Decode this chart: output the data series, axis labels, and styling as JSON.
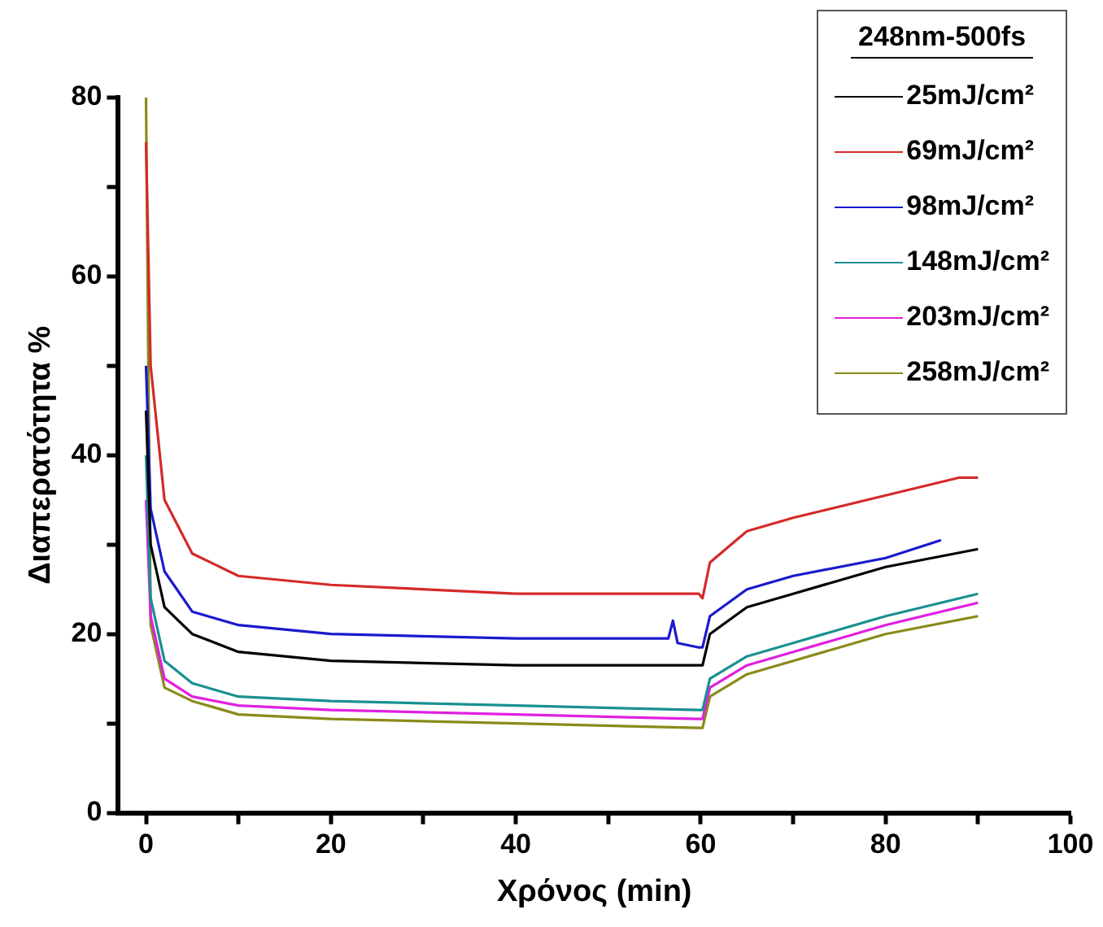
{
  "chart_data": {
    "type": "line",
    "xlabel": "Χρόνος (min)",
    "ylabel": "Διαπερατότητα %",
    "legend_title": "248nm-500fs",
    "legend": "top right",
    "grid": false,
    "marker": "none",
    "line_style": "solid",
    "xlim": [
      -3,
      100
    ],
    "xticks": [
      0,
      {
        "value": 10,
        "label": null
      },
      20,
      {
        "value": 30,
        "label": null
      },
      40,
      {
        "value": 50,
        "label": null
      },
      60,
      {
        "value": 70,
        "label": null
      },
      80,
      {
        "value": 90,
        "label": null
      },
      100
    ],
    "ylim": [
      0,
      80
    ],
    "yticks": [
      0,
      {
        "value": 10,
        "label": null
      },
      20,
      {
        "value": 30,
        "label": null
      },
      40,
      {
        "value": 50,
        "label": null
      },
      60,
      {
        "value": 70,
        "label": null
      },
      80
    ],
    "series": [
      {
        "name": "25mJ/cm²",
        "color": "#000000",
        "x": [
          0,
          0.5,
          2,
          5,
          10,
          20,
          40,
          59.8,
          60.2,
          61,
          65,
          70,
          80,
          90
        ],
        "values": [
          45,
          30,
          23,
          20,
          18,
          17,
          16.5,
          16.5,
          16.5,
          20,
          23,
          24.5,
          27.5,
          29.5
        ]
      },
      {
        "name": "69mJ/cm²",
        "color": "#d42a2a",
        "x": [
          0,
          0.5,
          2,
          5,
          10,
          20,
          40,
          59.8,
          60.2,
          61,
          65,
          70,
          80,
          88,
          90
        ],
        "values": [
          75,
          50,
          35,
          29,
          26.5,
          25.5,
          24.5,
          24.5,
          24,
          28,
          31.5,
          33,
          35.5,
          37.5,
          37.5
        ]
      },
      {
        "name": "98mJ/cm²",
        "color": "#1a1acc",
        "x": [
          0,
          0.5,
          2,
          5,
          10,
          20,
          40,
          56.5,
          57,
          57.5,
          59.8,
          60.2,
          61,
          65,
          70,
          80,
          86
        ],
        "values": [
          50,
          34,
          27,
          22.5,
          21,
          20,
          19.5,
          19.5,
          21.5,
          19,
          18.5,
          18.5,
          22,
          25,
          26.5,
          28.5,
          30.5
        ]
      },
      {
        "name": "148mJ/cm²",
        "color": "#1a9090",
        "x": [
          0,
          0.5,
          2,
          5,
          10,
          20,
          40,
          59.8,
          60.2,
          61,
          65,
          70,
          80,
          90
        ],
        "values": [
          40,
          24,
          17,
          14.5,
          13,
          12.5,
          12,
          11.5,
          11.5,
          15,
          17.5,
          19,
          22,
          24.5
        ]
      },
      {
        "name": "203mJ/cm²",
        "color": "#e020e0",
        "x": [
          0,
          0.5,
          2,
          5,
          10,
          20,
          40,
          59.8,
          60.2,
          61,
          65,
          70,
          80,
          90
        ],
        "values": [
          35,
          22,
          15,
          13,
          12,
          11.5,
          11,
          10.5,
          10.5,
          14,
          16.5,
          18,
          21,
          23.5
        ]
      },
      {
        "name": "258mJ/cm²",
        "color": "#8a8a1a",
        "x": [
          0,
          0.5,
          2,
          5,
          10,
          20,
          40,
          59.8,
          60.2,
          61,
          65,
          70,
          80,
          90
        ],
        "values": [
          80,
          21,
          14,
          12.5,
          11,
          10.5,
          10,
          9.5,
          9.5,
          13,
          15.5,
          17,
          20,
          22
        ]
      }
    ]
  }
}
